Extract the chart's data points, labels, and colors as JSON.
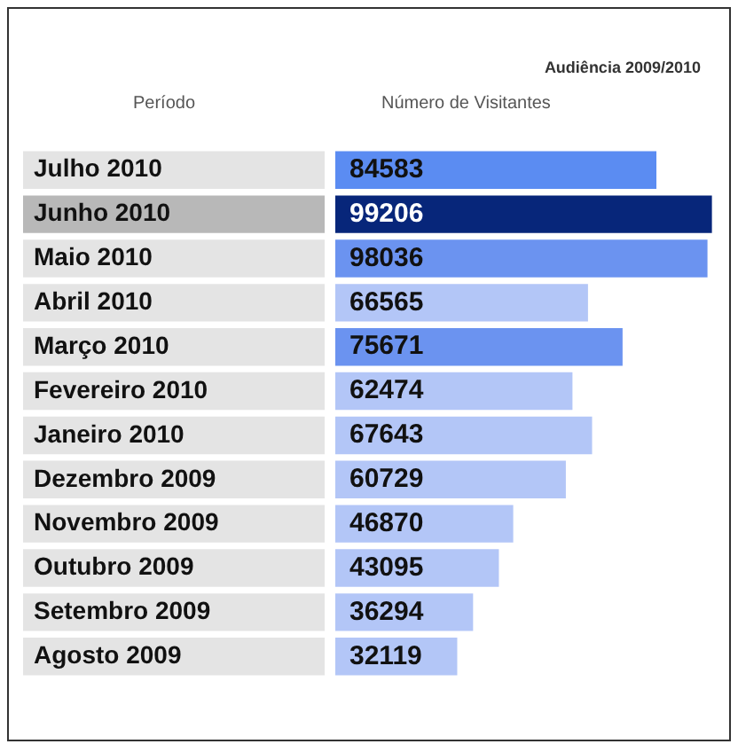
{
  "chart_data": {
    "type": "bar",
    "orientation": "horizontal",
    "title": "Audiência 2009/2010",
    "ylabel": "Período",
    "xlabel": "Número de Visitantes",
    "categories": [
      "Julho 2010",
      "Junho 2010",
      "Maio 2010",
      "Abril 2010",
      "Março 2010",
      "Fevereiro 2010",
      "Janeiro 2010",
      "Dezembro 2009",
      "Novembro 2009",
      "Outubro 2009",
      "Setembro 2009",
      "Agosto 2009"
    ],
    "values": [
      84583,
      99206,
      98036,
      66565,
      75671,
      62474,
      67643,
      60729,
      46870,
      43095,
      36294,
      32119
    ],
    "colors": [
      "#5b8cf2",
      "#07267a",
      "#6b93f0",
      "#b3c6f7",
      "#6b93f0",
      "#b3c6f7",
      "#b3c6f7",
      "#b3c6f7",
      "#b3c6f7",
      "#b3c6f7",
      "#b3c6f7",
      "#b3c6f7"
    ],
    "data_labels": true,
    "grid": false,
    "legend": false
  }
}
